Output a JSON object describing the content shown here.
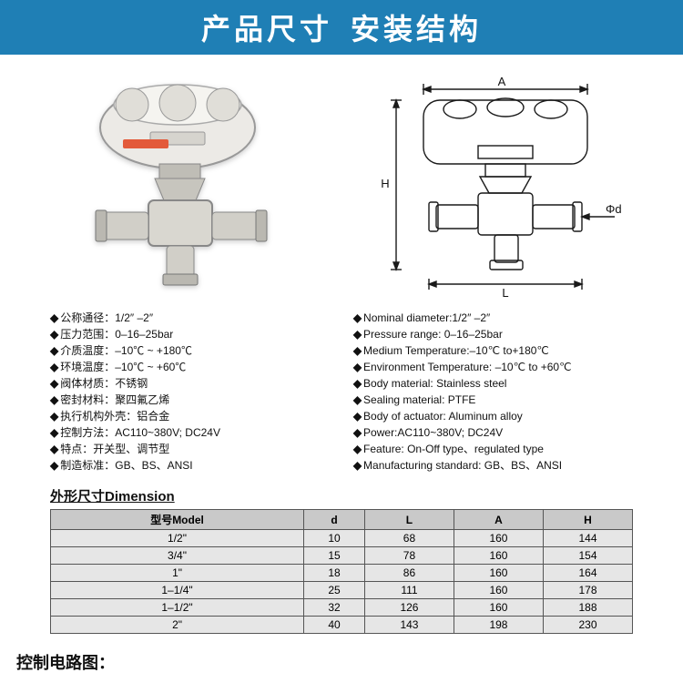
{
  "header": {
    "left": "产品尺寸",
    "right": "安装结构"
  },
  "diagram": {
    "labels": {
      "A": "A",
      "H": "H",
      "L": "L",
      "phi_d": "Φd"
    },
    "stroke": "#1a1a1a"
  },
  "specs_cn": [
    "公称通径：1/2″ –2″",
    "压力范围：0–16–25bar",
    "介质温度：–10℃ ~ +180℃",
    "环境温度：–10℃ ~ +60℃",
    "阀体材质：不锈钢",
    "密封材料：聚四氟乙烯",
    "执行机构外壳：铝合金",
    "控制方法：AC110~380V; DC24V",
    "特点：开关型、调节型",
    "制造标准：GB、BS、ANSI"
  ],
  "specs_en": [
    "Nominal diameter:1/2″ –2″",
    "Pressure range: 0–16–25bar",
    "Medium Temperature:–10℃ to+180℃",
    "Environment Temperature: –10℃ to +60℃",
    "Body material: Stainless steel",
    "Sealing material: PTFE",
    "Body of actuator: Aluminum alloy",
    "Power:AC110~380V; DC24V",
    "Feature: On-Off type、regulated type",
    "Manufacturing standard: GB、BS、ANSI"
  ],
  "dimension_title": "外形尺寸Dimension",
  "dimension_table": {
    "columns": [
      "型号Model",
      "d",
      "L",
      "A",
      "H"
    ],
    "rows": [
      [
        "1/2\"",
        "10",
        "68",
        "160",
        "144"
      ],
      [
        "3/4\"",
        "15",
        "78",
        "160",
        "154"
      ],
      [
        "1\"",
        "18",
        "86",
        "160",
        "164"
      ],
      [
        "1–1/4\"",
        "25",
        "111",
        "160",
        "178"
      ],
      [
        "1–1/2\"",
        "32",
        "126",
        "160",
        "188"
      ],
      [
        "2\"",
        "40",
        "143",
        "198",
        "230"
      ]
    ]
  },
  "footer_label": "控制电路图："
}
